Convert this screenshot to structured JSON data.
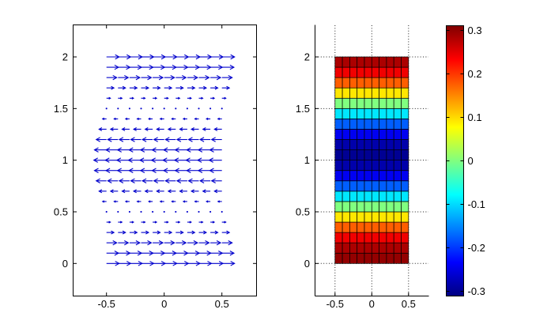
{
  "figure": {
    "background": "#ffffff",
    "axis_color": "#000000",
    "tick_label_color": "#000000"
  },
  "chart_data": [
    {
      "id": "quiver-plot",
      "type": "quiver",
      "title": "",
      "xlabel": "",
      "ylabel": "",
      "x": [
        -0.5,
        -0.4,
        -0.3,
        -0.2,
        -0.1,
        0,
        0.1,
        0.2,
        0.3,
        0.4,
        0.5
      ],
      "y_rows": [
        0,
        0.1,
        0.2,
        0.3,
        0.4,
        0.5,
        0.6,
        0.7,
        0.8,
        0.9,
        1.0,
        1.1,
        1.2,
        1.3,
        1.4,
        1.5,
        1.6,
        1.7,
        1.8,
        1.9,
        2.0
      ],
      "u_by_row": [
        0.3,
        0.2853,
        0.2427,
        0.1763,
        0.0927,
        0,
        -0.0927,
        -0.1763,
        -0.2427,
        -0.2853,
        -0.3,
        -0.2853,
        -0.2427,
        -0.1763,
        -0.0927,
        0,
        0.0927,
        0.1763,
        0.2427,
        0.2853,
        0.3
      ],
      "v_by_row": 0,
      "arrow_color": "#0000CC",
      "xlim": [
        -0.79,
        0.8
      ],
      "ylim": [
        -0.31,
        2.31
      ],
      "xticks": {
        "labels": [
          "-0.5",
          "0",
          "0.5"
        ],
        "values": [
          -0.5,
          0,
          0.5
        ]
      },
      "yticks": {
        "labels": [
          "0",
          "0.5",
          "1",
          "1.5",
          "2"
        ],
        "values": [
          0,
          0.5,
          1,
          1.5,
          2
        ]
      },
      "grid": false,
      "box": true
    },
    {
      "id": "pcolor-plot",
      "type": "heatmap",
      "title": "",
      "xlabel": "",
      "ylabel": "",
      "x_edges": [
        -0.5,
        -0.4,
        -0.3,
        -0.2,
        -0.1,
        0,
        0.1,
        0.2,
        0.3,
        0.4,
        0.5
      ],
      "y_edges": [
        0,
        0.1,
        0.2,
        0.3,
        0.4,
        0.5,
        0.6,
        0.7,
        0.8,
        0.9,
        1.0,
        1.1,
        1.2,
        1.3,
        1.4,
        1.5,
        1.6,
        1.7,
        1.8,
        1.9,
        2.0
      ],
      "row_values_bottom_to_top": [
        0.3,
        0.2853,
        0.2427,
        0.1763,
        0.0927,
        0,
        -0.0927,
        -0.1763,
        -0.2427,
        -0.2853,
        -0.3,
        -0.2853,
        -0.2427,
        -0.1763,
        -0.0927,
        0,
        0.0927,
        0.1763,
        0.2427,
        0.2853
      ],
      "colormap": "jet",
      "clim": [
        -0.312,
        0.312
      ],
      "cell_edge_color": "#000000",
      "xlim": [
        -0.777,
        0.785
      ],
      "ylim": [
        -0.31,
        2.31
      ],
      "xticks": {
        "labels": [
          "-0.5",
          "0",
          "0.5"
        ],
        "values": [
          -0.5,
          0,
          0.5
        ]
      },
      "yticks": {
        "labels": [
          "0",
          "0.5",
          "1",
          "1.5",
          "2"
        ],
        "values": [
          0,
          0.5,
          1,
          1.5,
          2
        ]
      },
      "grid": "dotted",
      "box": false
    }
  ],
  "colorbar": {
    "colormap": "jet",
    "orientation": "vertical",
    "ticks": {
      "labels": [
        "0.3",
        "0.2",
        "0.1",
        "0",
        "-0.1",
        "-0.2",
        "-0.3"
      ],
      "values": [
        0.3,
        0.2,
        0.1,
        0,
        -0.1,
        -0.2,
        -0.3
      ]
    }
  }
}
